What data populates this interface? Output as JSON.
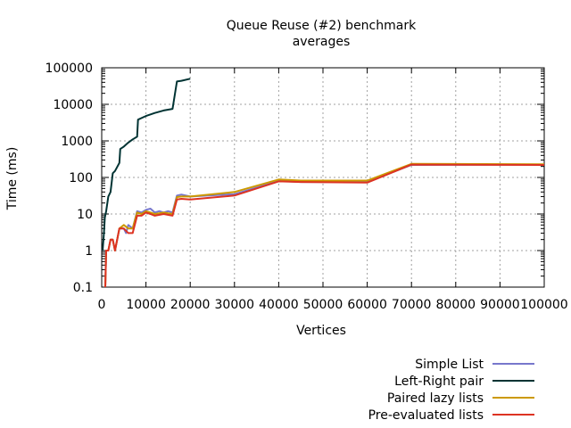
{
  "chart_data": {
    "type": "line",
    "title_lines": [
      "Queue Reuse (#2) benchmark",
      "averages"
    ],
    "xlabel": "Vertices",
    "ylabel": "Time (ms)",
    "xlim": [
      0,
      100000
    ],
    "ylim": [
      0.1,
      100000
    ],
    "yscale": "log",
    "grid": true,
    "legend_position": "bottom-right",
    "x_ticks": [
      0,
      10000,
      20000,
      30000,
      40000,
      50000,
      60000,
      70000,
      80000,
      90000,
      100000
    ],
    "x_tick_labels": [
      "0",
      "10000",
      "20000",
      "30000",
      "40000",
      "50000",
      "60000",
      "70000",
      "80000",
      "90000",
      "100000"
    ],
    "y_ticks": [
      0.1,
      1,
      10,
      100,
      1000,
      10000,
      100000
    ],
    "y_tick_labels": [
      "0.1",
      "1",
      "10",
      "100",
      "1000",
      "10000",
      "100000"
    ],
    "series": [
      {
        "name": "Simple List",
        "color": "#7777cc",
        "points": [
          [
            800,
            0.1
          ],
          [
            1000,
            1
          ],
          [
            1500,
            1
          ],
          [
            2000,
            2
          ],
          [
            2500,
            2
          ],
          [
            3000,
            1
          ],
          [
            4000,
            4
          ],
          [
            5000,
            4
          ],
          [
            5500,
            3
          ],
          [
            6000,
            5
          ],
          [
            7000,
            4
          ],
          [
            8000,
            12
          ],
          [
            9000,
            11
          ],
          [
            10000,
            13
          ],
          [
            11000,
            14
          ],
          [
            12000,
            11
          ],
          [
            13000,
            12
          ],
          [
            14000,
            11
          ],
          [
            15000,
            12
          ],
          [
            16000,
            11
          ],
          [
            17000,
            32
          ],
          [
            18000,
            34
          ],
          [
            20000,
            30
          ],
          [
            30000,
            35
          ],
          [
            40000,
            80
          ],
          [
            45000,
            75
          ],
          [
            60000,
            75
          ],
          [
            70000,
            220
          ],
          [
            100000,
            225
          ]
        ]
      },
      {
        "name": "Left-Right pair",
        "color": "#003333",
        "points": [
          [
            200,
            1
          ],
          [
            500,
            3
          ],
          [
            700,
            8
          ],
          [
            1000,
            12
          ],
          [
            1500,
            30
          ],
          [
            2000,
            40
          ],
          [
            2500,
            130
          ],
          [
            3000,
            150
          ],
          [
            4000,
            250
          ],
          [
            4200,
            600
          ],
          [
            5000,
            700
          ],
          [
            6000,
            900
          ],
          [
            7000,
            1100
          ],
          [
            8000,
            1300
          ],
          [
            8200,
            3800
          ],
          [
            9000,
            4200
          ],
          [
            10000,
            4800
          ],
          [
            12000,
            5800
          ],
          [
            14000,
            6800
          ],
          [
            16000,
            7500
          ],
          [
            17000,
            42000
          ],
          [
            18000,
            44000
          ],
          [
            20000,
            50000
          ]
        ]
      },
      {
        "name": "Paired lazy lists",
        "color": "#cc9900",
        "points": [
          [
            800,
            0.1
          ],
          [
            1000,
            1
          ],
          [
            1500,
            1
          ],
          [
            2000,
            2
          ],
          [
            2500,
            2
          ],
          [
            3000,
            1
          ],
          [
            4000,
            4
          ],
          [
            5000,
            5
          ],
          [
            6000,
            4
          ],
          [
            7000,
            4
          ],
          [
            8000,
            11
          ],
          [
            9000,
            10
          ],
          [
            10000,
            12
          ],
          [
            11000,
            11
          ],
          [
            12000,
            10
          ],
          [
            14000,
            11
          ],
          [
            16000,
            10
          ],
          [
            17000,
            29
          ],
          [
            18000,
            30
          ],
          [
            20000,
            30
          ],
          [
            30000,
            40
          ],
          [
            40000,
            88
          ],
          [
            45000,
            82
          ],
          [
            60000,
            82
          ],
          [
            70000,
            235
          ],
          [
            100000,
            230
          ]
        ]
      },
      {
        "name": "Pre-evaluated lists",
        "color": "#dd3322",
        "points": [
          [
            800,
            0.1
          ],
          [
            1000,
            1
          ],
          [
            1500,
            1
          ],
          [
            2000,
            2
          ],
          [
            2500,
            2
          ],
          [
            3000,
            1
          ],
          [
            4000,
            4
          ],
          [
            5000,
            4
          ],
          [
            6000,
            3
          ],
          [
            7000,
            3
          ],
          [
            8000,
            9
          ],
          [
            9000,
            9
          ],
          [
            10000,
            11
          ],
          [
            11000,
            10
          ],
          [
            12000,
            9
          ],
          [
            14000,
            10
          ],
          [
            16000,
            9
          ],
          [
            17000,
            25
          ],
          [
            18000,
            26
          ],
          [
            20000,
            25
          ],
          [
            30000,
            32
          ],
          [
            40000,
            78
          ],
          [
            45000,
            75
          ],
          [
            60000,
            72
          ],
          [
            70000,
            225
          ],
          [
            100000,
            220
          ]
        ]
      }
    ]
  }
}
